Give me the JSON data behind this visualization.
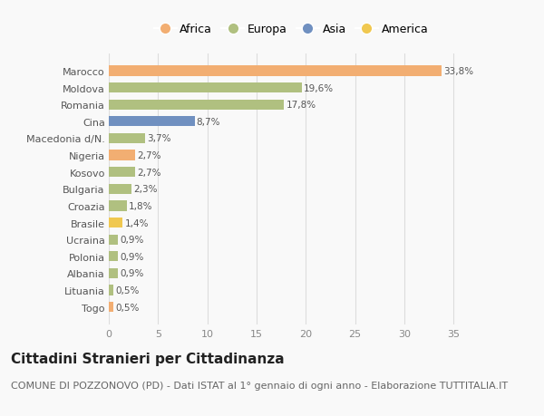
{
  "categories": [
    "Marocco",
    "Moldova",
    "Romania",
    "Cina",
    "Macedonia d/N.",
    "Nigeria",
    "Kosovo",
    "Bulgaria",
    "Croazia",
    "Brasile",
    "Ucraina",
    "Polonia",
    "Albania",
    "Lituania",
    "Togo"
  ],
  "values": [
    33.8,
    19.6,
    17.8,
    8.7,
    3.7,
    2.7,
    2.7,
    2.3,
    1.8,
    1.4,
    0.9,
    0.9,
    0.9,
    0.5,
    0.5
  ],
  "labels": [
    "33,8%",
    "19,6%",
    "17,8%",
    "8,7%",
    "3,7%",
    "2,7%",
    "2,7%",
    "2,3%",
    "1,8%",
    "1,4%",
    "0,9%",
    "0,9%",
    "0,9%",
    "0,5%",
    "0,5%"
  ],
  "continents": [
    "Africa",
    "Europa",
    "Europa",
    "Asia",
    "Europa",
    "Africa",
    "Europa",
    "Europa",
    "Europa",
    "America",
    "Europa",
    "Europa",
    "Europa",
    "Europa",
    "Africa"
  ],
  "colors": {
    "Africa": "#F2AE72",
    "Europa": "#B0C080",
    "Asia": "#7090C0",
    "America": "#F0C850"
  },
  "legend_order": [
    "Africa",
    "Europa",
    "Asia",
    "America"
  ],
  "title": "Cittadini Stranieri per Cittadinanza",
  "subtitle": "COMUNE DI POZZONOVO (PD) - Dati ISTAT al 1° gennaio di ogni anno - Elaborazione TUTTITALIA.IT",
  "xlim": [
    0,
    37
  ],
  "xticks": [
    0,
    5,
    10,
    15,
    20,
    25,
    30,
    35
  ],
  "background_color": "#f9f9f9",
  "grid_color": "#dddddd",
  "title_fontsize": 11,
  "subtitle_fontsize": 8,
  "bar_height": 0.6
}
